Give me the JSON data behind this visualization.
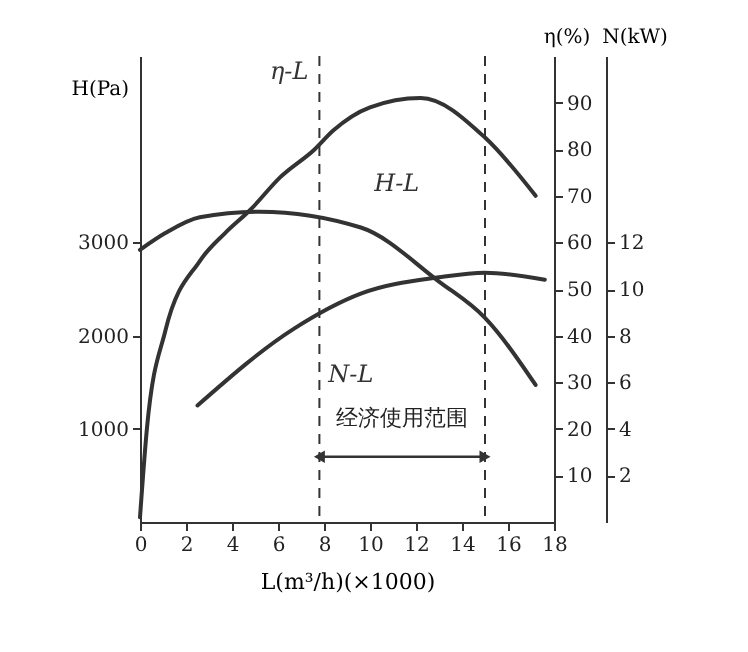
{
  "chart_data": {
    "type": "line",
    "xlabel": "L(m³/h)(×1000)",
    "ylabel": "H(Pa)",
    "y2label": "η(%)",
    "y3label": "N(kW)",
    "xlim": [
      0,
      18
    ],
    "xticks": [
      0,
      2,
      4,
      6,
      8,
      10,
      12,
      14,
      16,
      18
    ],
    "ylim": [
      0,
      5000
    ],
    "yticks": [
      1000,
      2000,
      3000
    ],
    "y2lim": [
      0,
      100
    ],
    "y2ticks": [
      10,
      20,
      30,
      40,
      50,
      60,
      70,
      80,
      90
    ],
    "y3lim": [
      0,
      20
    ],
    "y3ticks": [
      2,
      4,
      6,
      8,
      10,
      12
    ],
    "grid": false,
    "marker": "none",
    "line_style": "solid",
    "series": [
      {
        "name": "η-L",
        "color": "#333333",
        "axis": "y2",
        "x": [
          0,
          0.3,
          1.1,
          2.6,
          3.7,
          4.8,
          6.1,
          7.6,
          8.4,
          10,
          12.2,
          15,
          17.2
        ],
        "values": [
          1,
          20,
          41,
          56,
          62,
          67,
          74,
          80,
          84,
          89,
          91,
          82.5,
          70
        ]
      },
      {
        "name": "H-L",
        "color": "#333333",
        "axis": "y",
        "x": [
          0,
          1.1,
          2.6,
          5.2,
          9.6,
          13,
          15,
          17.2
        ],
        "values": [
          2920,
          3100,
          3270,
          3330,
          3160,
          2580,
          2190,
          1470
        ]
      },
      {
        "name": "N-L",
        "color": "#333333",
        "axis": "y3",
        "x": [
          2.5,
          6.7,
          9.6,
          13,
          15,
          17.6
        ],
        "values": [
          5.0,
          8.3,
          9.8,
          10.5,
          10.7,
          10.4
        ]
      }
    ],
    "ref_lines": [
      {
        "axis": "x",
        "value": 7.8,
        "line_style": "dashed",
        "color": "#333333"
      },
      {
        "axis": "x",
        "value": 15,
        "line_style": "dashed",
        "color": "#333333"
      }
    ],
    "annotations": [
      "经济使用范围"
    ]
  }
}
